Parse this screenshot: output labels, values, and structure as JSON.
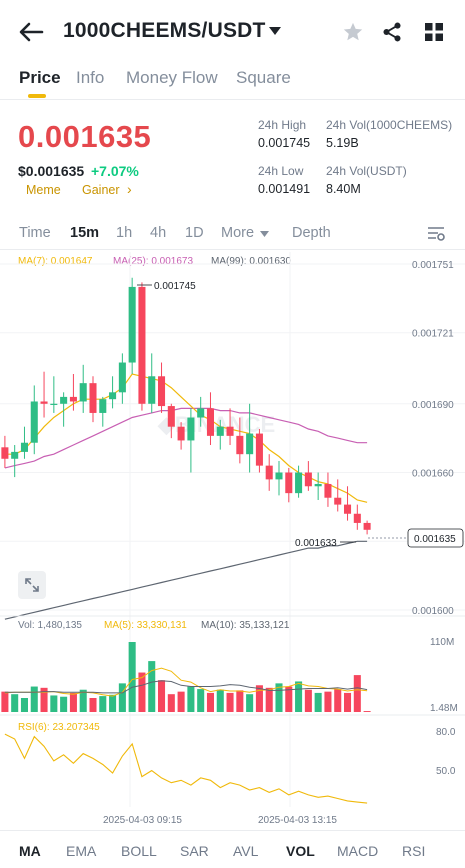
{
  "header": {
    "pair": "1000CHEEMS/USDT",
    "icons": [
      "back-arrow-icon",
      "caret-down-icon",
      "star-icon",
      "share-icon",
      "grid-icon"
    ]
  },
  "tabs": [
    {
      "label": "Price",
      "active": true
    },
    {
      "label": "Info",
      "active": false
    },
    {
      "label": "Money Flow",
      "active": false
    },
    {
      "label": "Square",
      "active": false
    }
  ],
  "price": {
    "last": "0.001635",
    "usd": "$0.001635",
    "change": "+7.07%",
    "tags": [
      "Meme",
      "Gainer"
    ],
    "tag_arrow": "›"
  },
  "stats": {
    "high_label": "24h High",
    "high_value": "0.001745",
    "low_label": "24h Low",
    "low_value": "0.001491",
    "vol_base_label": "24h Vol(1000CHEEMS)",
    "vol_base_value": "5.19B",
    "vol_quote_label": "24h Vol(USDT)",
    "vol_quote_value": "8.40M"
  },
  "intervals": [
    {
      "label": "Time",
      "active": false
    },
    {
      "label": "15m",
      "active": true
    },
    {
      "label": "1h",
      "active": false
    },
    {
      "label": "4h",
      "active": false
    },
    {
      "label": "1D",
      "active": false
    },
    {
      "label": "More",
      "active": false
    },
    {
      "label": "Depth",
      "active": false
    }
  ],
  "chart_legend": {
    "ma7": "MA(7): 0.001647",
    "ma25": "MA(25): 0.001673",
    "ma99": "MA(99): 0.001630"
  },
  "colors": {
    "up": "#2ebd85",
    "down": "#f6465d",
    "ma7": "#f0b90b",
    "ma25": "#c85fb3",
    "ma99": "#5e6671",
    "accent": "#f0b90b",
    "price_red": "#e5484d"
  },
  "chart_data": [
    {
      "type": "candlestick",
      "title": "",
      "y_ticks": [
        "0.001751",
        "0.001721",
        "0.001690",
        "0.001660",
        "0.001630",
        "0.001600"
      ],
      "ylim": [
        0.0016,
        0.001751
      ],
      "annotations": {
        "high_marker": "0.001745",
        "low_marker": "0.001633",
        "current_price": "0.001635"
      },
      "candles": [
        {
          "o": 0.001671,
          "h": 0.001676,
          "l": 0.001662,
          "c": 0.001666
        },
        {
          "o": 0.001666,
          "h": 0.001672,
          "l": 0.001658,
          "c": 0.001669
        },
        {
          "o": 0.001669,
          "h": 0.00168,
          "l": 0.001666,
          "c": 0.001673
        },
        {
          "o": 0.001673,
          "h": 0.001698,
          "l": 0.001668,
          "c": 0.001691
        },
        {
          "o": 0.001691,
          "h": 0.001704,
          "l": 0.001684,
          "c": 0.00169
        },
        {
          "o": 0.00169,
          "h": 0.001702,
          "l": 0.001686,
          "c": 0.00169
        },
        {
          "o": 0.00169,
          "h": 0.001695,
          "l": 0.00168,
          "c": 0.001693
        },
        {
          "o": 0.001693,
          "h": 0.001703,
          "l": 0.001687,
          "c": 0.001691
        },
        {
          "o": 0.001691,
          "h": 0.001707,
          "l": 0.001686,
          "c": 0.001699
        },
        {
          "o": 0.001699,
          "h": 0.001702,
          "l": 0.001682,
          "c": 0.001686
        },
        {
          "o": 0.001686,
          "h": 0.001693,
          "l": 0.00168,
          "c": 0.001692
        },
        {
          "o": 0.001692,
          "h": 0.001702,
          "l": 0.001688,
          "c": 0.001695
        },
        {
          "o": 0.001695,
          "h": 0.001712,
          "l": 0.00169,
          "c": 0.001708
        },
        {
          "o": 0.001708,
          "h": 0.001745,
          "l": 0.001703,
          "c": 0.001741
        },
        {
          "o": 0.001741,
          "h": 0.001743,
          "l": 0.001687,
          "c": 0.00169
        },
        {
          "o": 0.00169,
          "h": 0.001712,
          "l": 0.001686,
          "c": 0.001702
        },
        {
          "o": 0.001702,
          "h": 0.001708,
          "l": 0.001686,
          "c": 0.001689
        },
        {
          "o": 0.001689,
          "h": 0.00169,
          "l": 0.001675,
          "c": 0.00168
        },
        {
          "o": 0.00168,
          "h": 0.001682,
          "l": 0.00167,
          "c": 0.001674
        },
        {
          "o": 0.001674,
          "h": 0.001688,
          "l": 0.00166,
          "c": 0.001684
        },
        {
          "o": 0.001684,
          "h": 0.001693,
          "l": 0.00168,
          "c": 0.001688
        },
        {
          "o": 0.001688,
          "h": 0.001695,
          "l": 0.001672,
          "c": 0.001676
        },
        {
          "o": 0.001676,
          "h": 0.001683,
          "l": 0.00167,
          "c": 0.00168
        },
        {
          "o": 0.00168,
          "h": 0.001688,
          "l": 0.001672,
          "c": 0.001676
        },
        {
          "o": 0.001676,
          "h": 0.001684,
          "l": 0.001664,
          "c": 0.001668
        },
        {
          "o": 0.001668,
          "h": 0.00169,
          "l": 0.00166,
          "c": 0.001677
        },
        {
          "o": 0.001677,
          "h": 0.001679,
          "l": 0.00166,
          "c": 0.001663
        },
        {
          "o": 0.001663,
          "h": 0.001668,
          "l": 0.001652,
          "c": 0.001657
        },
        {
          "o": 0.001657,
          "h": 0.001665,
          "l": 0.00165,
          "c": 0.00166
        },
        {
          "o": 0.00166,
          "h": 0.001662,
          "l": 0.001647,
          "c": 0.001651
        },
        {
          "o": 0.001651,
          "h": 0.001663,
          "l": 0.001649,
          "c": 0.00166
        },
        {
          "o": 0.00166,
          "h": 0.001665,
          "l": 0.001652,
          "c": 0.001654
        },
        {
          "o": 0.001654,
          "h": 0.00166,
          "l": 0.001648,
          "c": 0.001655
        },
        {
          "o": 0.001655,
          "h": 0.00166,
          "l": 0.001645,
          "c": 0.001649
        },
        {
          "o": 0.001649,
          "h": 0.001657,
          "l": 0.001643,
          "c": 0.001646
        },
        {
          "o": 0.001646,
          "h": 0.001654,
          "l": 0.001639,
          "c": 0.001642
        },
        {
          "o": 0.001642,
          "h": 0.001646,
          "l": 0.001635,
          "c": 0.001638
        },
        {
          "o": 0.001638,
          "h": 0.001639,
          "l": 0.001633,
          "c": 0.001635
        }
      ],
      "ma7": [
        0.001668,
        0.001668,
        0.00167,
        0.001675,
        0.00168,
        0.001684,
        0.001687,
        0.00169,
        0.001692,
        0.001692,
        0.001692,
        0.001694,
        0.001697,
        0.001703,
        0.001702,
        0.001701,
        0.0017,
        0.001697,
        0.001693,
        0.001689,
        0.001685,
        0.001683,
        0.00168,
        0.001679,
        0.001678,
        0.001677,
        0.001674,
        0.00167,
        0.001667,
        0.001663,
        0.00166,
        0.001658,
        0.001656,
        0.001655,
        0.001653,
        0.001651,
        0.001648,
        0.001647
      ],
      "ma25": [
        0.001662,
        0.001663,
        0.001664,
        0.001665,
        0.001667,
        0.001668,
        0.00167,
        0.001672,
        0.001674,
        0.001676,
        0.001678,
        0.00168,
        0.001682,
        0.001684,
        0.001685,
        0.001686,
        0.001687,
        0.001687,
        0.001688,
        0.001688,
        0.001688,
        0.001688,
        0.001687,
        0.001687,
        0.001686,
        0.001686,
        0.001685,
        0.001684,
        0.001683,
        0.001682,
        0.001681,
        0.001679,
        0.001678,
        0.001676,
        0.001675,
        0.001674,
        0.001673,
        0.001673
      ],
      "ma99": [
        0.001596,
        0.001597,
        0.001598,
        0.001599,
        0.0016,
        0.001601,
        0.001602,
        0.001603,
        0.001604,
        0.001605,
        0.001606,
        0.001607,
        0.001608,
        0.001609,
        0.00161,
        0.001611,
        0.001612,
        0.001613,
        0.001614,
        0.001615,
        0.001616,
        0.001617,
        0.001618,
        0.001619,
        0.00162,
        0.001621,
        0.001622,
        0.001623,
        0.001624,
        0.001625,
        0.001626,
        0.001627,
        0.001627,
        0.001628,
        0.001628,
        0.001629,
        0.00163,
        0.00163
      ]
    },
    {
      "type": "bar",
      "title": "",
      "legend": {
        "vol": "Vol: 1,480,135",
        "ma5": "MA(5): 33,330,131",
        "ma10": "MA(10): 35,133,121"
      },
      "y_ticks": [
        "110M",
        "1.48M"
      ],
      "ylim": [
        0,
        110000000
      ],
      "volumes": [
        32,
        28,
        22,
        40,
        38,
        26,
        24,
        30,
        35,
        22,
        25,
        27,
        45,
        110,
        62,
        80,
        50,
        28,
        32,
        40,
        36,
        30,
        35,
        30,
        34,
        28,
        42,
        38,
        45,
        40,
        48,
        35,
        30,
        32,
        36,
        30,
        58,
        1.48
      ],
      "ma5": [
        30,
        31,
        31,
        31,
        31,
        32,
        29,
        28,
        31,
        30,
        27,
        25,
        31,
        51,
        54,
        65,
        69,
        64,
        50,
        47,
        38,
        32,
        35,
        33,
        33,
        31,
        34,
        35,
        39,
        40,
        45,
        41,
        40,
        37,
        36,
        33,
        35,
        33.33
      ],
      "ma10": [
        31,
        31,
        31,
        31,
        32,
        32,
        31,
        31,
        31,
        31,
        30,
        30,
        30,
        39,
        42,
        47,
        49,
        48,
        42,
        40,
        40,
        40,
        41,
        43,
        42,
        39,
        37,
        34,
        34,
        35,
        36,
        37,
        37,
        37,
        38,
        36,
        38,
        35.13
      ]
    },
    {
      "type": "line",
      "title": "",
      "legend": {
        "rsi": "RSI(6): 23.207345"
      },
      "y_ticks": [
        "80.0",
        "50.0"
      ],
      "ylim": [
        20,
        90
      ],
      "rsi": [
        80,
        76,
        60,
        78,
        70,
        58,
        63,
        56,
        64,
        60,
        55,
        48,
        62,
        72,
        45,
        50,
        44,
        40,
        42,
        38,
        44,
        42,
        36,
        40,
        38,
        34,
        36,
        32,
        35,
        30,
        33,
        30,
        28,
        29,
        27,
        25,
        24,
        23.21
      ]
    }
  ],
  "time_axis": [
    "2025-04-03 09:15",
    "2025-04-03 13:15"
  ],
  "indicators": [
    {
      "label": "MA",
      "active": true
    },
    {
      "label": "EMA",
      "active": false
    },
    {
      "label": "BOLL",
      "active": false
    },
    {
      "label": "SAR",
      "active": false
    },
    {
      "label": "AVL",
      "active": false
    },
    {
      "label": "VOL",
      "active": true
    },
    {
      "label": "MACD",
      "active": false
    },
    {
      "label": "RSI",
      "active": false
    }
  ]
}
